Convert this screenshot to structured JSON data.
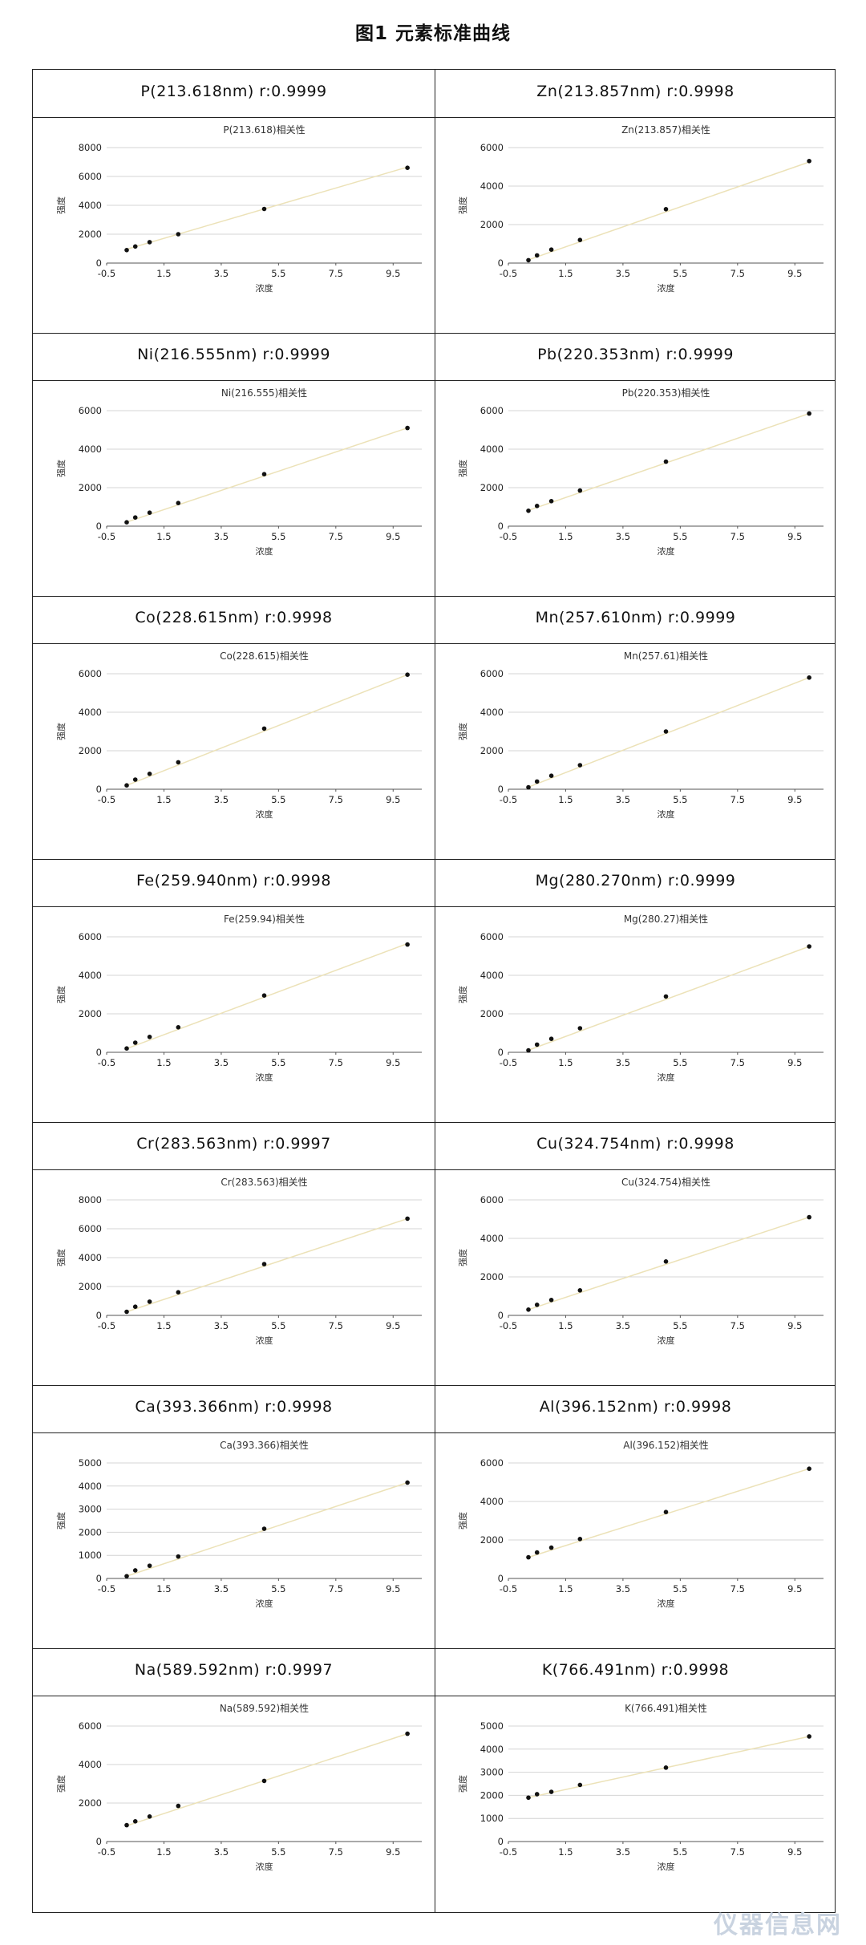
{
  "figure_title": "图1 元素标准曲线",
  "axis_labels": {
    "x": "浓度",
    "y": "强度"
  },
  "watermark": "仪器信息网",
  "chart_data": [
    {
      "type": "scatter",
      "title": "P(213.618)相关性",
      "header": "P(213.618nm)  r:0.9999",
      "xlabel": "浓度",
      "ylabel": "强度",
      "xlim": [
        -0.5,
        10.5
      ],
      "ylim": [
        0,
        8000
      ],
      "yticks": [
        0,
        2000,
        4000,
        6000,
        8000
      ],
      "xticks": [
        -0.5,
        1.5,
        3.5,
        5.5,
        7.5,
        9.5
      ],
      "xticklabels": [
        "-0.5",
        "1.5",
        "3.5",
        "5.5",
        "7.5",
        "9.5"
      ],
      "x": [
        0.2,
        0.5,
        1,
        2,
        5,
        10
      ],
      "y": [
        900,
        1150,
        1450,
        2000,
        3750,
        6600
      ],
      "trendline": [
        [
          0.2,
          960
        ],
        [
          10,
          6650
        ]
      ]
    },
    {
      "type": "scatter",
      "title": "Zn(213.857)相关性",
      "header": "Zn(213.857nm)  r:0.9998",
      "xlabel": "浓度",
      "ylabel": "强度",
      "xlim": [
        -0.5,
        10.5
      ],
      "ylim": [
        0,
        6000
      ],
      "yticks": [
        0,
        2000,
        4000,
        6000
      ],
      "xticks": [
        -0.5,
        1.5,
        3.5,
        5.5,
        7.5,
        9.5
      ],
      "xticklabels": [
        "-0.5",
        "1.5",
        "3.5",
        "5.5",
        "7.5",
        "9.5"
      ],
      "x": [
        0.2,
        0.5,
        1,
        2,
        5,
        10
      ],
      "y": [
        150,
        400,
        700,
        1200,
        2800,
        5300
      ],
      "trendline": [
        [
          0.2,
          170
        ],
        [
          10,
          5250
        ]
      ]
    },
    {
      "type": "scatter",
      "title": "Ni(216.555)相关性",
      "header": "Ni(216.555nm)  r:0.9999",
      "xlabel": "浓度",
      "ylabel": "强度",
      "xlim": [
        -0.5,
        10.5
      ],
      "ylim": [
        0,
        6000
      ],
      "yticks": [
        0,
        2000,
        4000,
        6000
      ],
      "xticks": [
        -0.5,
        1.5,
        3.5,
        5.5,
        7.5,
        9.5
      ],
      "xticklabels": [
        "-0.5",
        "1.5",
        "3.5",
        "5.5",
        "7.5",
        "9.5"
      ],
      "x": [
        0.2,
        0.5,
        1,
        2,
        5,
        10
      ],
      "y": [
        200,
        450,
        700,
        1200,
        2700,
        5100
      ],
      "trendline": [
        [
          0.2,
          210
        ],
        [
          10,
          5100
        ]
      ]
    },
    {
      "type": "scatter",
      "title": "Pb(220.353)相关性",
      "header": "Pb(220.353nm)  r:0.9999",
      "xlabel": "浓度",
      "ylabel": "强度",
      "xlim": [
        -0.5,
        10.5
      ],
      "ylim": [
        0,
        6000
      ],
      "yticks": [
        0,
        2000,
        4000,
        6000
      ],
      "xticks": [
        -0.5,
        1.5,
        3.5,
        5.5,
        7.5,
        9.5
      ],
      "xticklabels": [
        "-0.5",
        "1.5",
        "3.5",
        "5.5",
        "7.5",
        "9.5"
      ],
      "x": [
        0.2,
        0.5,
        1,
        2,
        5,
        10
      ],
      "y": [
        800,
        1050,
        1300,
        1850,
        3350,
        5850
      ],
      "trendline": [
        [
          0.2,
          820
        ],
        [
          10,
          5850
        ]
      ]
    },
    {
      "type": "scatter",
      "title": "Co(228.615)相关性",
      "header": "Co(228.615nm)  r:0.9998",
      "xlabel": "浓度",
      "ylabel": "强度",
      "xlim": [
        -0.5,
        10.5
      ],
      "ylim": [
        0,
        6000
      ],
      "yticks": [
        0,
        2000,
        4000,
        6000
      ],
      "xticks": [
        -0.5,
        1.5,
        3.5,
        5.5,
        7.5,
        9.5
      ],
      "xticklabels": [
        "-0.5",
        "1.5",
        "3.5",
        "5.5",
        "7.5",
        "9.5"
      ],
      "x": [
        0.2,
        0.5,
        1,
        2,
        5,
        10
      ],
      "y": [
        200,
        500,
        800,
        1400,
        3150,
        5950
      ],
      "trendline": [
        [
          0.2,
          200
        ],
        [
          10,
          5950
        ]
      ]
    },
    {
      "type": "scatter",
      "title": "Mn(257.61)相关性",
      "header": "Mn(257.610nm)  r:0.9999",
      "xlabel": "浓度",
      "ylabel": "强度",
      "xlim": [
        -0.5,
        10.5
      ],
      "ylim": [
        0,
        6000
      ],
      "yticks": [
        0,
        2000,
        4000,
        6000
      ],
      "xticks": [
        -0.5,
        1.5,
        3.5,
        5.5,
        7.5,
        9.5
      ],
      "xticklabels": [
        "-0.5",
        "1.5",
        "3.5",
        "5.5",
        "7.5",
        "9.5"
      ],
      "x": [
        0.2,
        0.5,
        1,
        2,
        5,
        10
      ],
      "y": [
        100,
        400,
        700,
        1250,
        3000,
        5800
      ],
      "trendline": [
        [
          0.2,
          110
        ],
        [
          10,
          5800
        ]
      ]
    },
    {
      "type": "scatter",
      "title": "Fe(259.94)相关性",
      "header": "Fe(259.940nm)  r:0.9998",
      "xlabel": "浓度",
      "ylabel": "强度",
      "xlim": [
        -0.5,
        10.5
      ],
      "ylim": [
        0,
        6000
      ],
      "yticks": [
        0,
        2000,
        4000,
        6000
      ],
      "xticks": [
        -0.5,
        1.5,
        3.5,
        5.5,
        7.5,
        9.5
      ],
      "xticklabels": [
        "-0.5",
        "1.5",
        "3.5",
        "5.5",
        "7.5",
        "9.5"
      ],
      "x": [
        0.2,
        0.5,
        1,
        2,
        5,
        10
      ],
      "y": [
        200,
        500,
        800,
        1300,
        2950,
        5600
      ],
      "trendline": [
        [
          0.2,
          190
        ],
        [
          10,
          5650
        ]
      ]
    },
    {
      "type": "scatter",
      "title": "Mg(280.27)相关性",
      "header": "Mg(280.270nm)  r:0.9999",
      "xlabel": "浓度",
      "ylabel": "强度",
      "xlim": [
        -0.5,
        10.5
      ],
      "ylim": [
        0,
        6000
      ],
      "yticks": [
        0,
        2000,
        4000,
        6000
      ],
      "xticks": [
        -0.5,
        1.5,
        3.5,
        5.5,
        7.5,
        9.5
      ],
      "xticklabels": [
        "-0.5",
        "1.5",
        "3.5",
        "5.5",
        "7.5",
        "9.5"
      ],
      "x": [
        0.2,
        0.5,
        1,
        2,
        5,
        10
      ],
      "y": [
        100,
        400,
        700,
        1250,
        2900,
        5500
      ],
      "trendline": [
        [
          0.2,
          110
        ],
        [
          10,
          5500
        ]
      ]
    },
    {
      "type": "scatter",
      "title": "Cr(283.563)相关性",
      "header": "Cr(283.563nm)  r:0.9997",
      "xlabel": "浓度",
      "ylabel": "强度",
      "xlim": [
        -0.5,
        10.5
      ],
      "ylim": [
        0,
        8000
      ],
      "yticks": [
        0,
        2000,
        4000,
        6000,
        8000
      ],
      "xticks": [
        -0.5,
        1.5,
        3.5,
        5.5,
        7.5,
        9.5
      ],
      "xticklabels": [
        "-0.5",
        "1.5",
        "3.5",
        "5.5",
        "7.5",
        "9.5"
      ],
      "x": [
        0.2,
        0.5,
        1,
        2,
        5,
        10
      ],
      "y": [
        250,
        600,
        950,
        1600,
        3550,
        6700
      ],
      "trendline": [
        [
          0.2,
          250
        ],
        [
          10,
          6700
        ]
      ]
    },
    {
      "type": "scatter",
      "title": "Cu(324.754)相关性",
      "header": "Cu(324.754nm)  r:0.9998",
      "xlabel": "浓度",
      "ylabel": "强度",
      "xlim": [
        -0.5,
        10.5
      ],
      "ylim": [
        0,
        6000
      ],
      "yticks": [
        0,
        2000,
        4000,
        6000
      ],
      "xticks": [
        -0.5,
        1.5,
        3.5,
        5.5,
        7.5,
        9.5
      ],
      "xticklabels": [
        "-0.5",
        "1.5",
        "3.5",
        "5.5",
        "7.5",
        "9.5"
      ],
      "x": [
        0.2,
        0.5,
        1,
        2,
        5,
        10
      ],
      "y": [
        300,
        550,
        800,
        1300,
        2800,
        5100
      ],
      "trendline": [
        [
          0.2,
          300
        ],
        [
          10,
          5100
        ]
      ]
    },
    {
      "type": "scatter",
      "title": "Ca(393.366)相关性",
      "header": "Ca(393.366nm)  r:0.9998",
      "xlabel": "浓度",
      "ylabel": "强度",
      "xlim": [
        -0.5,
        10.5
      ],
      "ylim": [
        0,
        5000
      ],
      "yticks": [
        0,
        1000,
        2000,
        3000,
        4000,
        5000
      ],
      "xticks": [
        -0.5,
        1.5,
        3.5,
        5.5,
        7.5,
        9.5
      ],
      "xticklabels": [
        "-0.5",
        "1.5",
        "3.5",
        "5.5",
        "7.5",
        "9.5"
      ],
      "x": [
        0.2,
        0.5,
        1,
        2,
        5,
        10
      ],
      "y": [
        100,
        350,
        550,
        950,
        2150,
        4150
      ],
      "trendline": [
        [
          0.2,
          100
        ],
        [
          10,
          4150
        ]
      ]
    },
    {
      "type": "scatter",
      "title": "Al(396.152)相关性",
      "header": "Al(396.152nm)  r:0.9998",
      "xlabel": "浓度",
      "ylabel": "强度",
      "xlim": [
        -0.5,
        10.5
      ],
      "ylim": [
        0,
        6000
      ],
      "yticks": [
        0,
        2000,
        4000,
        6000
      ],
      "xticks": [
        -0.5,
        1.5,
        3.5,
        5.5,
        7.5,
        9.5
      ],
      "xticklabels": [
        "-0.5",
        "1.5",
        "3.5",
        "5.5",
        "7.5",
        "9.5"
      ],
      "x": [
        0.2,
        0.5,
        1,
        2,
        5,
        10
      ],
      "y": [
        1100,
        1350,
        1600,
        2050,
        3450,
        5700
      ],
      "trendline": [
        [
          0.2,
          1100
        ],
        [
          10,
          5700
        ]
      ]
    },
    {
      "type": "scatter",
      "title": "Na(589.592)相关性",
      "header": "Na(589.592nm)  r:0.9997",
      "xlabel": "浓度",
      "ylabel": "强度",
      "xlim": [
        -0.5,
        10.5
      ],
      "ylim": [
        0,
        6000
      ],
      "yticks": [
        0,
        2000,
        4000,
        6000
      ],
      "xticks": [
        -0.5,
        1.5,
        3.5,
        5.5,
        7.5,
        9.5
      ],
      "xticklabels": [
        "-0.5",
        "1.5",
        "3.5",
        "5.5",
        "7.5",
        "9.5"
      ],
      "x": [
        0.2,
        0.5,
        1,
        2,
        5,
        10
      ],
      "y": [
        850,
        1050,
        1300,
        1850,
        3150,
        5600
      ],
      "trendline": [
        [
          0.2,
          820
        ],
        [
          10,
          5600
        ]
      ]
    },
    {
      "type": "scatter",
      "title": "K(766.491)相关性",
      "header": "K(766.491nm)  r:0.9998",
      "xlabel": "浓度",
      "ylabel": "强度",
      "xlim": [
        -0.5,
        10.5
      ],
      "ylim": [
        0,
        5000
      ],
      "yticks": [
        0,
        1000,
        2000,
        3000,
        4000,
        5000
      ],
      "xticks": [
        -0.5,
        1.5,
        3.5,
        5.5,
        7.5,
        9.5
      ],
      "xticklabels": [
        "-0.5",
        "1.5",
        "3.5",
        "5.5",
        "7.5",
        "9.5"
      ],
      "x": [
        0.2,
        0.5,
        1,
        2,
        5,
        10
      ],
      "y": [
        1900,
        2050,
        2150,
        2450,
        3200,
        4550
      ],
      "trendline": [
        [
          0.2,
          1900
        ],
        [
          10,
          4550
        ]
      ]
    }
  ]
}
